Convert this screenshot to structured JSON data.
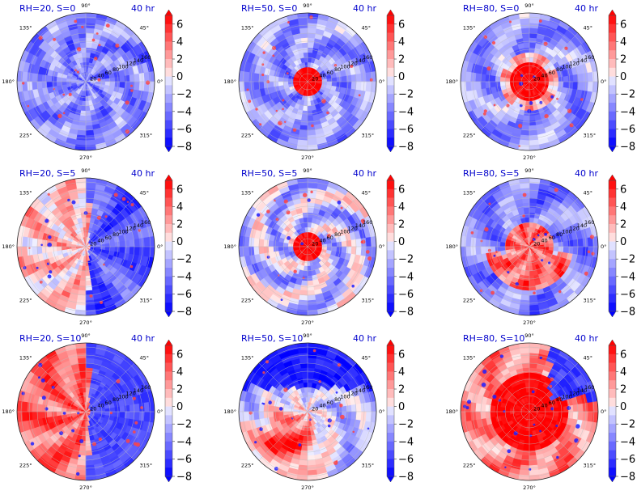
{
  "figure": {
    "colors": {
      "neg_max": "#0000ff",
      "pos_max": "#ff0000",
      "neutral": "#ffffff",
      "title": "#0000cc",
      "grid": "#bdbdbd",
      "axis": "#222222"
    }
  },
  "chart_data": [
    {
      "type": "heatmap",
      "projection": "polar",
      "title": "RH=20, S=0",
      "time_label": "40 hr",
      "pattern": "blue-speckled",
      "theta_ticks": [
        "90°",
        "45°",
        "0°",
        "315°",
        "270°",
        "225°",
        "180°",
        "135°"
      ],
      "radial_ticks": [
        "20",
        "40",
        "60",
        "80",
        "100",
        "120",
        "140",
        "160"
      ],
      "colorbar": {
        "ticks": [
          "6",
          "4",
          "2",
          "0",
          "−2",
          "−4",
          "−6",
          "−8"
        ],
        "vmin": -8,
        "vmax": 7,
        "step": 1,
        "extend": "both"
      }
    },
    {
      "type": "heatmap",
      "projection": "polar",
      "title": "RH=50, S=0",
      "time_label": "40 hr",
      "pattern": "red-core",
      "theta_ticks": [
        "90°",
        "45°",
        "0°",
        "315°",
        "270°",
        "225°",
        "180°",
        "135°"
      ],
      "radial_ticks": [
        "20",
        "40",
        "60",
        "80",
        "100",
        "120",
        "140",
        "160"
      ],
      "colorbar": {
        "ticks": [
          "6",
          "4",
          "2",
          "0",
          "−2",
          "−4",
          "−6",
          "−8"
        ],
        "vmin": -8,
        "vmax": 7,
        "step": 1,
        "extend": "both"
      }
    },
    {
      "type": "heatmap",
      "projection": "polar",
      "title": "RH=80, S=0",
      "time_label": "40 hr",
      "pattern": "red-large-core",
      "theta_ticks": [
        "90°",
        "45°",
        "0°",
        "315°",
        "270°",
        "225°",
        "180°",
        "135°"
      ],
      "radial_ticks": [
        "20",
        "40",
        "60",
        "80",
        "100",
        "120",
        "140",
        "160"
      ],
      "colorbar": {
        "ticks": [
          "6",
          "4",
          "2",
          "0",
          "−2",
          "−4",
          "−6",
          "−8"
        ],
        "vmin": -8,
        "vmax": 7,
        "step": 1,
        "extend": "both"
      }
    },
    {
      "type": "heatmap",
      "projection": "polar",
      "title": "RH=20, S=5",
      "time_label": "40 hr",
      "pattern": "west-pink-east-blue",
      "theta_ticks": [
        "90°",
        "45°",
        "0°",
        "315°",
        "270°",
        "225°",
        "180°",
        "135°"
      ],
      "radial_ticks": [
        "20",
        "40",
        "60",
        "80",
        "100",
        "120",
        "140",
        "160"
      ],
      "colorbar": {
        "ticks": [
          "6",
          "4",
          "2",
          "0",
          "−2",
          "−4",
          "−6",
          "−8"
        ],
        "vmin": -8,
        "vmax": 7,
        "step": 1,
        "extend": "both"
      }
    },
    {
      "type": "heatmap",
      "projection": "polar",
      "title": "RH=50, S=5",
      "time_label": "40 hr",
      "pattern": "red-core-mixed",
      "theta_ticks": [
        "90°",
        "45°",
        "0°",
        "315°",
        "270°",
        "225°",
        "180°",
        "135°"
      ],
      "radial_ticks": [
        "20",
        "40",
        "60",
        "80",
        "100",
        "120",
        "140",
        "160"
      ],
      "colorbar": {
        "ticks": [
          "6",
          "4",
          "2",
          "0",
          "−2",
          "−4",
          "−6",
          "−8"
        ],
        "vmin": -8,
        "vmax": 7,
        "step": 1,
        "extend": "both"
      }
    },
    {
      "type": "heatmap",
      "projection": "polar",
      "title": "RH=80, S=5",
      "time_label": "40 hr",
      "pattern": "red-large-core-south",
      "theta_ticks": [
        "90°",
        "45°",
        "0°",
        "315°",
        "270°",
        "225°",
        "180°",
        "135°"
      ],
      "radial_ticks": [
        "20",
        "40",
        "60",
        "80",
        "100",
        "120",
        "140",
        "160"
      ],
      "colorbar": {
        "ticks": [
          "6",
          "4",
          "2",
          "0",
          "−2",
          "−4",
          "−6",
          "−8"
        ],
        "vmin": -8,
        "vmax": 7,
        "step": 1,
        "extend": "both"
      }
    },
    {
      "type": "heatmap",
      "projection": "polar",
      "title": "RH=20, S=10",
      "time_label": "40 hr",
      "pattern": "west-red-east-blue",
      "theta_ticks": [
        "90°",
        "45°",
        "0°",
        "315°",
        "270°",
        "225°",
        "180°",
        "135°"
      ],
      "radial_ticks": [
        "20",
        "40",
        "60",
        "80",
        "100",
        "120",
        "140",
        "160"
      ],
      "colorbar": {
        "ticks": [
          "6",
          "4",
          "2",
          "0",
          "−2",
          "−4",
          "−6",
          "−8"
        ],
        "vmin": -8,
        "vmax": 7,
        "step": 1,
        "extend": "both"
      }
    },
    {
      "type": "heatmap",
      "projection": "polar",
      "title": "RH=50, S=10",
      "time_label": "40 hr",
      "pattern": "southwest-red-north-blue",
      "theta_ticks": [
        "90°",
        "45°",
        "0°",
        "315°",
        "270°",
        "225°",
        "180°",
        "135°"
      ],
      "radial_ticks": [
        "20",
        "40",
        "60",
        "80",
        "100",
        "120",
        "140",
        "160"
      ],
      "colorbar": {
        "ticks": [
          "6",
          "4",
          "2",
          "0",
          "−2",
          "−4",
          "−6",
          "−8"
        ],
        "vmin": -8,
        "vmax": 7,
        "step": 1,
        "extend": "both"
      }
    },
    {
      "type": "heatmap",
      "projection": "polar",
      "title": "RH=80, S=10",
      "time_label": "40 hr",
      "pattern": "south-red-northeast-blue",
      "theta_ticks": [
        "90°",
        "45°",
        "0°",
        "315°",
        "270°",
        "225°",
        "180°",
        "135°"
      ],
      "radial_ticks": [
        "20",
        "40",
        "60",
        "80",
        "100",
        "120",
        "140",
        "160"
      ],
      "colorbar": {
        "ticks": [
          "6",
          "4",
          "2",
          "0",
          "−2",
          "−4",
          "−6",
          "−8"
        ],
        "vmin": -8,
        "vmax": 7,
        "step": 1,
        "extend": "both"
      }
    }
  ]
}
